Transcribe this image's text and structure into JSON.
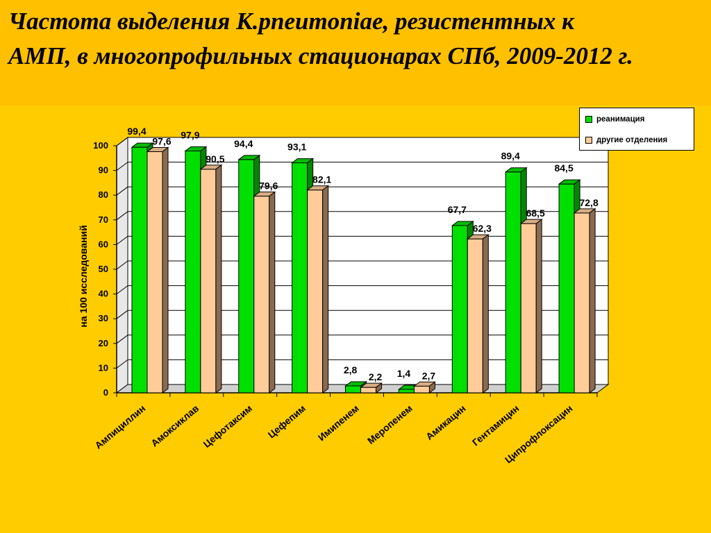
{
  "title": {
    "line1": "Частота выделения К.pneumoniae, резистентных к",
    "line2": "АМП, в многопрофильных стационарах СПб, 2009-2012 г."
  },
  "colors": {
    "background": "#FFCC00",
    "title_band": "#FFC000",
    "series_green": "#00E000",
    "series_peach": "#FFCC99"
  },
  "chart_data": {
    "type": "bar",
    "categories": [
      "Ампициллин",
      "Амоксиклав",
      "Цефотаксим",
      "Цефепим",
      "Имипенем",
      "Меропенем",
      "Амикацин",
      "Гентамицин",
      "Ципрофлоксацин"
    ],
    "series": [
      {
        "name": "реанимация",
        "color": "#00E000",
        "values": [
          99.4,
          97.9,
          94.4,
          93.1,
          2.8,
          1.4,
          67.7,
          89.4,
          84.5
        ],
        "labels": [
          "99,4",
          "97,9",
          "94,4",
          "93,1",
          "2,8",
          "1,4",
          "67,7",
          "89,4",
          "84,5"
        ]
      },
      {
        "name": "другие отделения",
        "color": "#FFCC99",
        "values": [
          97.6,
          90.5,
          79.6,
          82.1,
          2.2,
          2.7,
          62.3,
          68.5,
          72.8
        ],
        "labels": [
          "97,6",
          "90,5",
          "79,6",
          "82,1",
          "2,2",
          "2,7",
          "62,3",
          "68,5",
          "72,8"
        ]
      }
    ],
    "ylabel": "на 100 исследований",
    "xlabel": "",
    "ylim": [
      0,
      100
    ],
    "yticks": [
      0,
      10,
      20,
      30,
      40,
      50,
      60,
      70,
      80,
      90,
      100
    ],
    "grid": true,
    "legend_position": "top-right"
  }
}
